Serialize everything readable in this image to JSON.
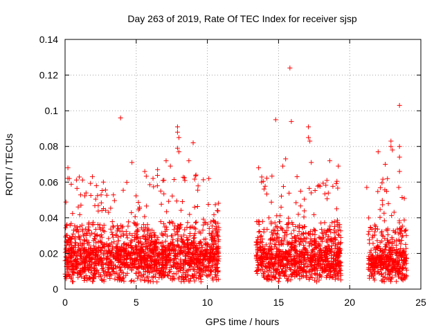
{
  "chart_data": {
    "type": "scatter",
    "title": "Day 263 of 2019, Rate Of TEC Index for receiver sjsp",
    "xlabel": "GPS time / hours",
    "ylabel": "ROTI / TECUs",
    "xlim": [
      0,
      25
    ],
    "ylim": [
      0,
      0.14
    ],
    "xticks": [
      0,
      5,
      10,
      15,
      20,
      25
    ],
    "xtick_labels": [
      "0",
      "5",
      "10",
      "15",
      "20",
      "25"
    ],
    "yticks": [
      0,
      0.02,
      0.04,
      0.06,
      0.08,
      0.1,
      0.12,
      0.14
    ],
    "ytick_labels": [
      "0",
      "0.02",
      "0.04",
      "0.06",
      "0.08",
      "0.1",
      "0.12",
      "0.14"
    ],
    "grid": true,
    "marker": "+",
    "marker_color": "#ff0000",
    "data_segments": [
      {
        "x_start": 0.0,
        "x_end": 10.8,
        "y_base": 0.016,
        "y_spread": 0.012
      },
      {
        "x_start": 13.4,
        "x_end": 19.4,
        "y_base": 0.016,
        "y_spread": 0.012
      },
      {
        "x_start": 21.3,
        "x_end": 24.0,
        "y_base": 0.014,
        "y_spread": 0.01
      }
    ],
    "notable_points": [
      {
        "x": 0.2,
        "y": 0.068
      },
      {
        "x": 0.3,
        "y": 0.062
      },
      {
        "x": 3.9,
        "y": 0.096
      },
      {
        "x": 4.7,
        "y": 0.071
      },
      {
        "x": 5.6,
        "y": 0.066
      },
      {
        "x": 6.5,
        "y": 0.067
      },
      {
        "x": 7.1,
        "y": 0.072
      },
      {
        "x": 7.4,
        "y": 0.069
      },
      {
        "x": 7.9,
        "y": 0.091
      },
      {
        "x": 7.9,
        "y": 0.088
      },
      {
        "x": 8.0,
        "y": 0.085
      },
      {
        "x": 7.9,
        "y": 0.079
      },
      {
        "x": 8.0,
        "y": 0.077
      },
      {
        "x": 8.7,
        "y": 0.072
      },
      {
        "x": 9.0,
        "y": 0.082
      },
      {
        "x": 9.2,
        "y": 0.064
      },
      {
        "x": 10.1,
        "y": 0.062
      },
      {
        "x": 10.7,
        "y": 0.044
      },
      {
        "x": 13.6,
        "y": 0.068
      },
      {
        "x": 14.8,
        "y": 0.095
      },
      {
        "x": 15.3,
        "y": 0.069
      },
      {
        "x": 15.5,
        "y": 0.073
      },
      {
        "x": 15.8,
        "y": 0.124
      },
      {
        "x": 15.9,
        "y": 0.094
      },
      {
        "x": 16.3,
        "y": 0.063
      },
      {
        "x": 17.1,
        "y": 0.091
      },
      {
        "x": 17.1,
        "y": 0.085
      },
      {
        "x": 17.2,
        "y": 0.083
      },
      {
        "x": 17.3,
        "y": 0.071
      },
      {
        "x": 18.6,
        "y": 0.072
      },
      {
        "x": 19.2,
        "y": 0.069
      },
      {
        "x": 22.0,
        "y": 0.077
      },
      {
        "x": 22.5,
        "y": 0.07
      },
      {
        "x": 22.9,
        "y": 0.083
      },
      {
        "x": 22.9,
        "y": 0.08
      },
      {
        "x": 23.0,
        "y": 0.078
      },
      {
        "x": 23.5,
        "y": 0.103
      },
      {
        "x": 23.5,
        "y": 0.08
      },
      {
        "x": 23.5,
        "y": 0.074
      },
      {
        "x": 23.5,
        "y": 0.066
      },
      {
        "x": 21.2,
        "y": 0.057
      },
      {
        "x": 2.2,
        "y": 0.058
      },
      {
        "x": 13.8,
        "y": 0.06
      },
      {
        "x": 18.4,
        "y": 0.061
      }
    ]
  }
}
